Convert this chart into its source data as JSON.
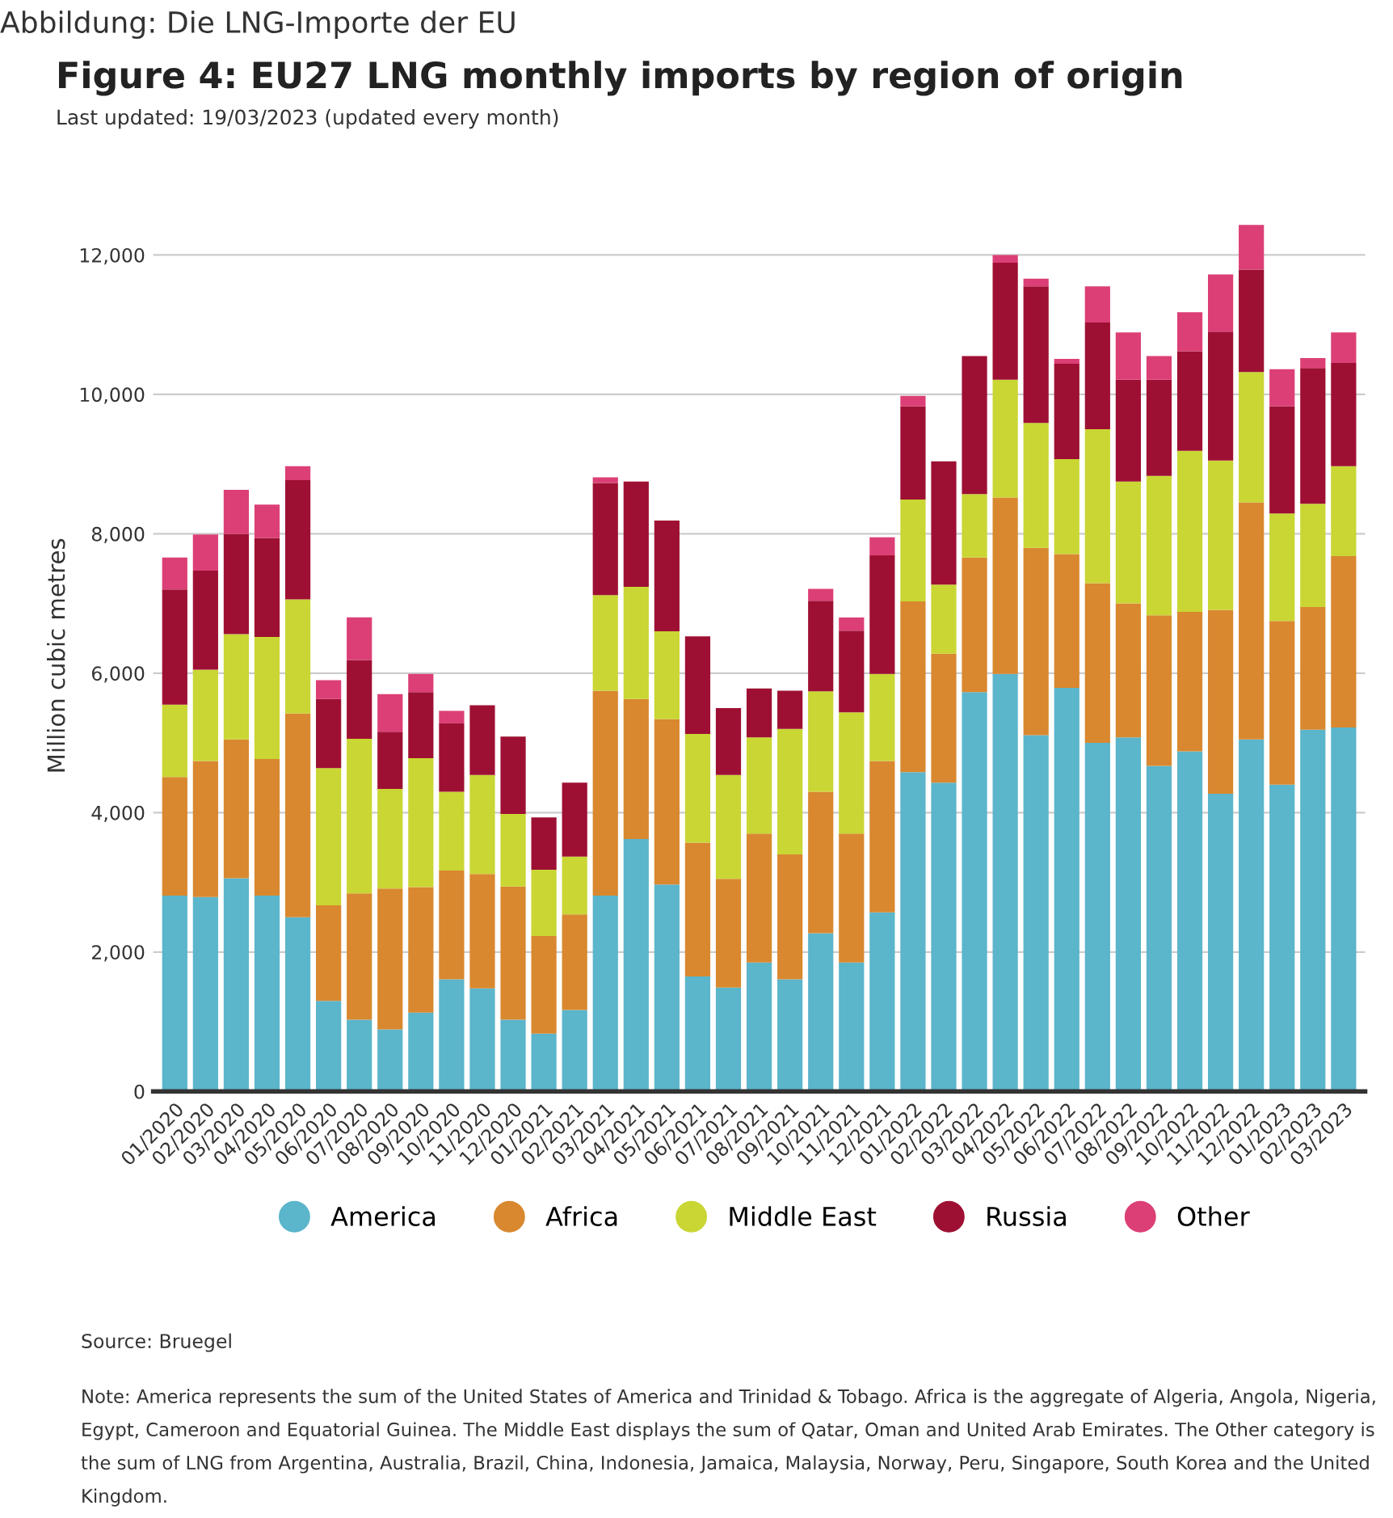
{
  "chart_data": {
    "type": "bar",
    "stacked": true,
    "title": "Figure 4: EU27 LNG monthly imports by region of origin",
    "subtitle": "Last updated: 19/03/2023 (updated every month)",
    "ylabel": "Million cubic metres",
    "categories": [
      "01/2020",
      "02/2020",
      "03/2020",
      "04/2020",
      "05/2020",
      "06/2020",
      "07/2020",
      "08/2020",
      "09/2020",
      "10/2020",
      "11/2020",
      "12/2020",
      "01/2021",
      "02/2021",
      "03/2021",
      "04/2021",
      "05/2021",
      "06/2021",
      "07/2021",
      "08/2021",
      "09/2021",
      "10/2021",
      "11/2021",
      "12/2021",
      "01/2022",
      "02/2022",
      "03/2022",
      "04/2022",
      "05/2022",
      "06/2022",
      "07/2022",
      "08/2022",
      "09/2022",
      "10/2022",
      "11/2022",
      "12/2022",
      "01/2023",
      "02/2023",
      "03/2023"
    ],
    "series": [
      {
        "name": "America",
        "color": "#5bb5cb",
        "values": [
          2810,
          2790,
          3060,
          2810,
          2500,
          1300,
          1030,
          890,
          1130,
          1610,
          1480,
          1030,
          830,
          1170,
          2810,
          3620,
          2970,
          1650,
          1490,
          1850,
          1610,
          2270,
          1850,
          2570,
          4580,
          4430,
          5730,
          5990,
          5110,
          5790,
          5000,
          5080,
          4670,
          4880,
          4270,
          5050,
          4400,
          5190,
          5220
        ]
      },
      {
        "name": "Africa",
        "color": "#d9882f",
        "values": [
          1700,
          1950,
          1990,
          1960,
          2920,
          1370,
          1810,
          2020,
          1800,
          1560,
          1640,
          1910,
          1400,
          1370,
          2940,
          2010,
          2370,
          1920,
          1560,
          1850,
          1790,
          2030,
          1850,
          2170,
          2450,
          1850,
          1930,
          2530,
          2690,
          1920,
          2290,
          1920,
          2160,
          2000,
          2640,
          3400,
          2350,
          1760,
          2460
        ]
      },
      {
        "name": "Middle East",
        "color": "#c9d634",
        "values": [
          1040,
          1310,
          1510,
          1750,
          1640,
          1970,
          2220,
          1430,
          1850,
          1130,
          1420,
          1040,
          950,
          830,
          1370,
          1610,
          1260,
          1560,
          1490,
          1380,
          1800,
          1440,
          1740,
          1250,
          1460,
          990,
          910,
          1690,
          1790,
          1360,
          2210,
          1750,
          2000,
          2310,
          2140,
          1870,
          1540,
          1480,
          1290
        ]
      },
      {
        "name": "Russia",
        "color": "#9e1033",
        "values": [
          1650,
          1420,
          1440,
          1420,
          1710,
          990,
          1130,
          820,
          950,
          980,
          1000,
          1110,
          750,
          1060,
          1610,
          1510,
          1590,
          1400,
          960,
          700,
          550,
          1300,
          1170,
          1700,
          1340,
          1770,
          1980,
          1680,
          1960,
          1370,
          1530,
          1460,
          1380,
          1430,
          1850,
          1470,
          1540,
          1950,
          1480
        ]
      },
      {
        "name": "Other",
        "color": "#dc3f76",
        "values": [
          460,
          520,
          630,
          480,
          200,
          270,
          610,
          540,
          260,
          180,
          0,
          0,
          0,
          0,
          80,
          0,
          0,
          0,
          0,
          0,
          0,
          170,
          190,
          260,
          150,
          0,
          0,
          110,
          110,
          70,
          520,
          680,
          340,
          560,
          820,
          640,
          530,
          140,
          440
        ]
      }
    ],
    "ylim": [
      0,
      12500
    ],
    "yticks": [
      0,
      {
        "value": 2000,
        "label": "2,000"
      },
      {
        "value": 4000,
        "label": "4,000"
      },
      {
        "value": 6000,
        "label": "6,000"
      },
      {
        "value": 8000,
        "label": "8,000"
      },
      {
        "value": 10000,
        "label": "10,000"
      },
      {
        "value": 12000,
        "label": "12,000"
      }
    ],
    "grid": "y",
    "legend": "bottom",
    "annotations": [
      "Abbildung: Die LNG-Importe der EU",
      "Source: Bruegel",
      "Note: America represents the sum of the United States of America and Trinidad & Tobago. Africa is the aggregate of Algeria, Angola, Nigeria, Egypt, Cameroon and Equatorial Guinea. The Middle East displays the sum of Qatar, Oman and United Arab Emirates. The Other category is the sum of LNG from Argentina, Australia, Brazil, China, Indonesia, Jamaica, Malaysia, Norway, Peru, Singapore, South Korea and the United Kingdom."
    ]
  }
}
